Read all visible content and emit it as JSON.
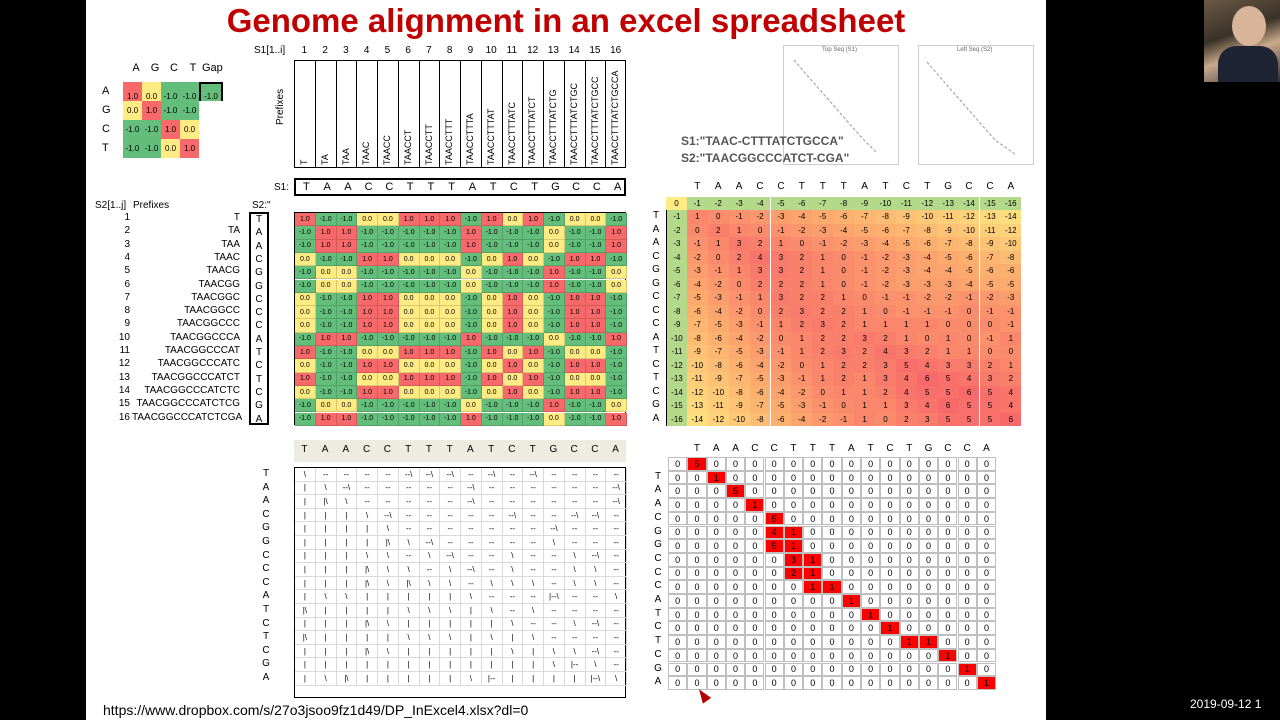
{
  "slide": {
    "title": "Genome alignment in an excel spreadsheet",
    "url": "https://www.dropbox.com/s/27o3jsoo9fz1d49/DP_InExcel4.xlsx?dl=0",
    "s1_label": "S1:\"TAAC-CTTTATCTGCCA\"",
    "s2_label": "S2:\"TAACGGCCCATCT-CGA\"",
    "s1_range_label": "S1[1..i]",
    "s2_range_label": "S2[1..j]",
    "prefixes_label": "Prefixes",
    "s1_row_label": "S1:",
    "s2_col_label": "S2:\"",
    "thumb1_label": "Top Seq (S1)",
    "thumb2_label": "Left Seq (S2)"
  },
  "timestamp": "2019-09-12 1",
  "colors": {
    "title": "#c00000",
    "red_cell": "#ff0000"
  },
  "score_matrix": {
    "headers": [
      "A",
      "G",
      "C",
      "T",
      "Gap"
    ],
    "rows": [
      {
        "label": "A",
        "values": [
          "1.0",
          "0.0",
          "-1.0",
          "-1.0",
          "-1.0"
        ]
      },
      {
        "label": "G",
        "values": [
          "0.0",
          "1.0",
          "-1.0",
          "-1.0",
          ""
        ]
      },
      {
        "label": "C",
        "values": [
          "-1.0",
          "-1.0",
          "1.0",
          "0.0",
          ""
        ]
      },
      {
        "label": "T",
        "values": [
          "-1.0",
          "-1.0",
          "0.0",
          "1.0",
          ""
        ]
      }
    ]
  },
  "s1_index": [
    "1",
    "2",
    "3",
    "4",
    "5",
    "6",
    "7",
    "8",
    "9",
    "10",
    "11",
    "12",
    "13",
    "14",
    "15",
    "16"
  ],
  "s1_prefixes": [
    "T",
    "TA",
    "TAA",
    "TAAC",
    "TAACC",
    "TAACCT",
    "TAACCTT",
    "TAACCTTT",
    "TAACCTTTA",
    "TAACCTTTAT",
    "TAACCTTTATC",
    "TAACCTTTATCT",
    "TAACCTTTATCTG",
    "TAACCTTTATCTGC",
    "TAACCTTTATCTGCC",
    "TAACCTTTATCTGCCA"
  ],
  "s1_seq": [
    "T",
    "A",
    "A",
    "C",
    "C",
    "T",
    "T",
    "T",
    "A",
    "T",
    "C",
    "T",
    "G",
    "C",
    "C",
    "A"
  ],
  "s2_index": [
    "1",
    "2",
    "3",
    "4",
    "5",
    "6",
    "7",
    "8",
    "9",
    "10",
    "11",
    "12",
    "13",
    "14",
    "15",
    "16"
  ],
  "s2_prefixes": [
    "T",
    "TA",
    "TAA",
    "TAAC",
    "TAACG",
    "TAACGG",
    "TAACGGC",
    "TAACGGCC",
    "TAACGGCCC",
    "TAACGGCCCA",
    "TAACGGCCCAT",
    "TAACGGCCCATC",
    "TAACGGCCCATCT",
    "TAACGGCCCATCTC",
    "TAACGGCCCATCTCG",
    "TAACGGCCCATCTCGA"
  ],
  "s2_seq": [
    "T",
    "A",
    "A",
    "C",
    "G",
    "G",
    "C",
    "C",
    "C",
    "A",
    "T",
    "C",
    "T",
    "C",
    "G",
    "A"
  ],
  "match_matrix": [
    [
      "1.0",
      "-1.0",
      "-1.0",
      "0.0",
      "0.0",
      "1.0",
      "1.0",
      "1.0",
      "-1.0",
      "1.0",
      "0.0",
      "1.0",
      "-1.0",
      "0.0",
      "0.0",
      "-1.0"
    ],
    [
      "-1.0",
      "1.0",
      "1.0",
      "-1.0",
      "-1.0",
      "-1.0",
      "-1.0",
      "-1.0",
      "1.0",
      "-1.0",
      "-1.0",
      "-1.0",
      "0.0",
      "-1.0",
      "-1.0",
      "1.0"
    ],
    [
      "-1.0",
      "1.0",
      "1.0",
      "-1.0",
      "-1.0",
      "-1.0",
      "-1.0",
      "-1.0",
      "1.0",
      "-1.0",
      "-1.0",
      "-1.0",
      "0.0",
      "-1.0",
      "-1.0",
      "1.0"
    ],
    [
      "0.0",
      "-1.0",
      "-1.0",
      "1.0",
      "1.0",
      "0.0",
      "0.0",
      "0.0",
      "-1.0",
      "0.0",
      "1.0",
      "0.0",
      "-1.0",
      "1.0",
      "1.0",
      "-1.0"
    ],
    [
      "-1.0",
      "0.0",
      "0.0",
      "-1.0",
      "-1.0",
      "-1.0",
      "-1.0",
      "-1.0",
      "0.0",
      "-1.0",
      "-1.0",
      "-1.0",
      "1.0",
      "-1.0",
      "-1.0",
      "0.0"
    ],
    [
      "-1.0",
      "0.0",
      "0.0",
      "-1.0",
      "-1.0",
      "-1.0",
      "-1.0",
      "-1.0",
      "0.0",
      "-1.0",
      "-1.0",
      "-1.0",
      "1.0",
      "-1.0",
      "-1.0",
      "0.0"
    ],
    [
      "0.0",
      "-1.0",
      "-1.0",
      "1.0",
      "1.0",
      "0.0",
      "0.0",
      "0.0",
      "-1.0",
      "0.0",
      "1.0",
      "0.0",
      "-1.0",
      "1.0",
      "1.0",
      "-1.0"
    ],
    [
      "0.0",
      "-1.0",
      "-1.0",
      "1.0",
      "1.0",
      "0.0",
      "0.0",
      "0.0",
      "-1.0",
      "0.0",
      "1.0",
      "0.0",
      "-1.0",
      "1.0",
      "1.0",
      "-1.0"
    ],
    [
      "0.0",
      "-1.0",
      "-1.0",
      "1.0",
      "1.0",
      "0.0",
      "0.0",
      "0.0",
      "-1.0",
      "0.0",
      "1.0",
      "0.0",
      "-1.0",
      "1.0",
      "1.0",
      "-1.0"
    ],
    [
      "-1.0",
      "1.0",
      "1.0",
      "-1.0",
      "-1.0",
      "-1.0",
      "-1.0",
      "-1.0",
      "1.0",
      "-1.0",
      "-1.0",
      "-1.0",
      "0.0",
      "-1.0",
      "-1.0",
      "1.0"
    ],
    [
      "1.0",
      "-1.0",
      "-1.0",
      "0.0",
      "0.0",
      "1.0",
      "1.0",
      "1.0",
      "-1.0",
      "1.0",
      "0.0",
      "1.0",
      "-1.0",
      "0.0",
      "0.0",
      "-1.0"
    ],
    [
      "0.0",
      "-1.0",
      "-1.0",
      "1.0",
      "1.0",
      "0.0",
      "0.0",
      "0.0",
      "-1.0",
      "0.0",
      "1.0",
      "0.0",
      "-1.0",
      "1.0",
      "1.0",
      "-1.0"
    ],
    [
      "1.0",
      "-1.0",
      "-1.0",
      "0.0",
      "0.0",
      "1.0",
      "1.0",
      "1.0",
      "-1.0",
      "1.0",
      "0.0",
      "1.0",
      "-1.0",
      "0.0",
      "0.0",
      "-1.0"
    ],
    [
      "0.0",
      "-1.0",
      "-1.0",
      "1.0",
      "1.0",
      "0.0",
      "0.0",
      "0.0",
      "-1.0",
      "0.0",
      "1.0",
      "0.0",
      "-1.0",
      "1.0",
      "1.0",
      "-1.0"
    ],
    [
      "-1.0",
      "0.0",
      "0.0",
      "-1.0",
      "-1.0",
      "-1.0",
      "-1.0",
      "-1.0",
      "0.0",
      "-1.0",
      "-1.0",
      "-1.0",
      "1.0",
      "-1.0",
      "-1.0",
      "0.0"
    ],
    [
      "-1.0",
      "1.0",
      "1.0",
      "-1.0",
      "-1.0",
      "-1.0",
      "-1.0",
      "-1.0",
      "1.0",
      "-1.0",
      "-1.0",
      "-1.0",
      "0.0",
      "-1.0",
      "-1.0",
      "1.0"
    ]
  ],
  "dp_matrix": {
    "header_row": [
      "0",
      "-1",
      "-2",
      "-3",
      "-4",
      "-5",
      "-6",
      "-7",
      "-8",
      "-9",
      "-10",
      "-11",
      "-12",
      "-13",
      "-14",
      "-15",
      "-16"
    ],
    "row_gap": [
      "-1",
      "-2",
      "-3",
      "-4",
      "-5",
      "-6",
      "-7",
      "-8",
      "-9",
      "-10",
      "-11",
      "-12",
      "-13",
      "-14",
      "-15",
      "-16"
    ],
    "rows": [
      [
        "1",
        "0",
        "-1",
        "-2",
        "-3",
        "-4",
        "-5",
        "-6",
        "-7",
        "-8",
        "-9",
        "-10",
        "-11",
        "-12",
        "-13",
        "-14"
      ],
      [
        "0",
        "2",
        "1",
        "0",
        "-1",
        "-2",
        "-3",
        "-4",
        "-5",
        "-6",
        "-7",
        "-8",
        "-9",
        "-10",
        "-11",
        "-12"
      ],
      [
        "-1",
        "1",
        "3",
        "2",
        "1",
        "0",
        "-1",
        "-2",
        "-3",
        "-4",
        "-5",
        "-6",
        "-7",
        "-8",
        "-9",
        "-10"
      ],
      [
        "-2",
        "0",
        "2",
        "4",
        "3",
        "2",
        "1",
        "0",
        "-1",
        "-2",
        "-3",
        "-4",
        "-5",
        "-6",
        "-7",
        "-8"
      ],
      [
        "-3",
        "-1",
        "1",
        "3",
        "3",
        "2",
        "1",
        "0",
        "-1",
        "-2",
        "-3",
        "-4",
        "-4",
        "-5",
        "-6",
        "-6"
      ],
      [
        "-4",
        "-2",
        "0",
        "2",
        "2",
        "2",
        "1",
        "0",
        "-1",
        "-2",
        "-3",
        "-3",
        "-3",
        "-4",
        "-5",
        "-5"
      ],
      [
        "-5",
        "-3",
        "-1",
        "1",
        "3",
        "2",
        "2",
        "1",
        "0",
        "-1",
        "-1",
        "-2",
        "-2",
        "-1",
        "-2",
        "-3"
      ],
      [
        "-6",
        "-4",
        "-2",
        "0",
        "2",
        "3",
        "2",
        "2",
        "1",
        "0",
        "-1",
        "-1",
        "-1",
        "0",
        "-1",
        "-1"
      ],
      [
        "-7",
        "-5",
        "-3",
        "-1",
        "1",
        "2",
        "3",
        "2",
        "1",
        "1",
        "1",
        "1",
        "0",
        "0",
        "0",
        "-1"
      ],
      [
        "-8",
        "-6",
        "-4",
        "-2",
        "0",
        "1",
        "2",
        "2",
        "3",
        "2",
        "1",
        "0",
        "1",
        "0",
        "-1",
        "1"
      ],
      [
        "-9",
        "-7",
        "-5",
        "-3",
        "-1",
        "1",
        "2",
        "3",
        "2",
        "4",
        "3",
        "2",
        "1",
        "1",
        "0",
        "0"
      ],
      [
        "-10",
        "-8",
        "-6",
        "-4",
        "-2",
        "0",
        "1",
        "2",
        "2",
        "3",
        "5",
        "4",
        "3",
        "3",
        "2",
        "1"
      ],
      [
        "-11",
        "-9",
        "-7",
        "-5",
        "-3",
        "-1",
        "1",
        "2",
        "1",
        "3",
        "4",
        "6",
        "5",
        "4",
        "3",
        "2"
      ],
      [
        "-12",
        "-10",
        "-8",
        "-6",
        "-4",
        "-2",
        "0",
        "1",
        "1",
        "2",
        "4",
        "5",
        "5",
        "6",
        "5",
        "4"
      ],
      [
        "-13",
        "-11",
        "-9",
        "-7",
        "-5",
        "-3",
        "-1",
        "0",
        "1",
        "1",
        "3",
        "4",
        "6",
        "5",
        "5",
        "4"
      ],
      [
        "-14",
        "-12",
        "-10",
        "-8",
        "-6",
        "-4",
        "-2",
        "-1",
        "1",
        "0",
        "2",
        "3",
        "5",
        "5",
        "5",
        "6"
      ]
    ]
  },
  "traceback": [
    [
      "\\",
      "--",
      "--",
      "--",
      "--",
      "--\\",
      "--\\",
      "--\\",
      "--",
      "--\\",
      "--",
      "--\\",
      "--",
      "--",
      "--",
      "--"
    ],
    [
      "|",
      "\\",
      "--\\",
      "--",
      "--",
      "--",
      "--",
      "--",
      "--\\",
      "--",
      "--",
      "--",
      "--",
      "--",
      "--",
      "--\\"
    ],
    [
      "|",
      "|\\",
      "\\",
      "--",
      "--",
      "--",
      "--",
      "--",
      "--\\",
      "--",
      "--",
      "--",
      "--",
      "--",
      "--",
      "--\\"
    ],
    [
      "|",
      "|",
      "|",
      "\\",
      "--\\",
      "--",
      "--",
      "--",
      "--",
      "--",
      "--\\",
      "--",
      "--",
      "--\\",
      "--\\",
      "--"
    ],
    [
      "|",
      "|",
      "|",
      "|",
      "\\",
      "--",
      "--",
      "--",
      "--",
      "--",
      "--",
      "--",
      "--\\",
      "--",
      "--",
      "--"
    ],
    [
      "|",
      "|",
      "|",
      "|",
      "|\\",
      "\\",
      "--\\",
      "--",
      "--",
      "--",
      "--",
      "--",
      "\\",
      "--",
      "--",
      "--"
    ],
    [
      "|",
      "|",
      "|",
      "\\",
      "\\",
      "--",
      "\\",
      "--\\",
      "--",
      "--",
      "\\",
      "--",
      "--",
      "\\",
      "--\\",
      "--"
    ],
    [
      "|",
      "|",
      "|",
      "|\\",
      "\\",
      "\\",
      "--",
      "\\",
      "--\\",
      "--",
      "\\",
      "--",
      "--",
      "\\",
      "\\",
      "--"
    ],
    [
      "|",
      "|",
      "|",
      "|\\",
      "\\",
      "|\\",
      "\\",
      "\\",
      "--",
      "\\",
      "\\",
      "\\",
      "--",
      "\\",
      "\\",
      "--"
    ],
    [
      "|",
      "\\",
      "\\",
      "|",
      "|",
      "|",
      "|",
      "|",
      "\\",
      "--",
      "--",
      "--",
      "|--\\",
      "--",
      "--",
      "\\"
    ],
    [
      "|\\",
      "|",
      "|",
      "|",
      "|",
      "\\",
      "\\",
      "\\",
      "|",
      "\\",
      "--",
      "\\",
      "--",
      "--",
      "--",
      "--"
    ],
    [
      "|",
      "|",
      "|",
      "|\\",
      "\\",
      "|",
      "|",
      "|",
      "|",
      "|",
      "\\",
      "--",
      "--",
      "\\",
      "--\\",
      "--"
    ],
    [
      "|\\",
      "|",
      "|",
      "|",
      "|",
      "\\",
      "\\",
      "\\",
      "|",
      "\\",
      "|",
      "\\",
      "--",
      "--",
      "--",
      "--"
    ],
    [
      "|",
      "|",
      "|",
      "|\\",
      "\\",
      "|",
      "|",
      "|",
      "|",
      "|",
      "\\",
      "|",
      "\\",
      "\\",
      "--\\",
      "--"
    ],
    [
      "|",
      "|",
      "|",
      "|",
      "|",
      "|",
      "|",
      "|",
      "|",
      "|",
      "|",
      "|",
      "\\",
      "|--",
      "\\",
      "--"
    ],
    [
      "|",
      "\\",
      "|\\",
      "|",
      "|",
      "|",
      "|",
      "|",
      "\\",
      "|--",
      "|",
      "|",
      "|",
      "|",
      "|--\\",
      "\\"
    ]
  ],
  "path_matrix": {
    "labels": [
      "T",
      "A",
      "A",
      "C",
      "G",
      "G",
      "C",
      "C",
      "C",
      "A",
      "T",
      "C",
      "T",
      "C",
      "G",
      "A"
    ],
    "cells": [
      [
        0,
        0,
        5,
        0,
        0,
        0,
        0,
        0,
        0,
        0,
        0,
        0,
        0,
        0,
        0,
        0,
        0,
        0
      ],
      [
        0,
        0,
        0,
        1,
        0,
        0,
        0,
        0,
        0,
        0,
        0,
        0,
        0,
        0,
        0,
        0,
        0,
        0
      ],
      [
        0,
        0,
        0,
        0,
        5,
        0,
        0,
        0,
        0,
        0,
        0,
        0,
        0,
        0,
        0,
        0,
        0,
        0
      ],
      [
        0,
        0,
        0,
        0,
        0,
        1,
        0,
        0,
        0,
        0,
        0,
        0,
        0,
        0,
        0,
        0,
        0,
        0
      ],
      [
        0,
        0,
        0,
        0,
        0,
        0,
        5,
        0,
        0,
        0,
        0,
        0,
        0,
        0,
        0,
        0,
        0,
        0
      ],
      [
        0,
        0,
        0,
        0,
        0,
        0,
        4,
        1,
        0,
        0,
        0,
        0,
        0,
        0,
        0,
        0,
        0,
        0
      ],
      [
        0,
        0,
        0,
        0,
        0,
        0,
        5,
        1,
        0,
        0,
        0,
        0,
        0,
        0,
        0,
        0,
        0,
        0
      ],
      [
        0,
        0,
        0,
        0,
        0,
        0,
        0,
        3,
        1,
        0,
        0,
        0,
        0,
        0,
        0,
        0,
        0,
        0
      ],
      [
        0,
        0,
        0,
        0,
        0,
        0,
        0,
        2,
        1,
        0,
        0,
        0,
        0,
        0,
        0,
        0,
        0,
        0
      ],
      [
        0,
        0,
        0,
        0,
        0,
        0,
        0,
        0,
        1,
        1,
        0,
        0,
        0,
        0,
        0,
        0,
        0,
        0
      ],
      [
        0,
        0,
        0,
        0,
        0,
        0,
        0,
        0,
        0,
        0,
        1,
        0,
        0,
        0,
        0,
        0,
        0,
        0
      ],
      [
        0,
        0,
        0,
        0,
        0,
        0,
        0,
        0,
        0,
        0,
        0,
        1,
        0,
        0,
        0,
        0,
        0,
        0
      ],
      [
        0,
        0,
        0,
        0,
        0,
        0,
        0,
        0,
        0,
        0,
        0,
        0,
        1,
        0,
        0,
        0,
        0,
        0
      ],
      [
        0,
        0,
        0,
        0,
        0,
        0,
        0,
        0,
        0,
        0,
        0,
        0,
        0,
        1,
        1,
        0,
        0,
        0
      ],
      [
        0,
        0,
        0,
        0,
        0,
        0,
        0,
        0,
        0,
        0,
        0,
        0,
        0,
        0,
        0,
        1,
        0,
        0
      ],
      [
        0,
        0,
        0,
        0,
        0,
        0,
        0,
        0,
        0,
        0,
        0,
        0,
        0,
        0,
        0,
        0,
        1,
        0
      ],
      [
        0,
        0,
        0,
        0,
        0,
        0,
        0,
        0,
        0,
        0,
        0,
        0,
        0,
        0,
        0,
        0,
        0,
        1
      ]
    ],
    "red_cells": [
      [
        0,
        2
      ],
      [
        1,
        3
      ],
      [
        2,
        4
      ],
      [
        3,
        5
      ],
      [
        4,
        6
      ],
      [
        5,
        6
      ],
      [
        5,
        7
      ],
      [
        6,
        6
      ],
      [
        6,
        7
      ],
      [
        7,
        7
      ],
      [
        7,
        8
      ],
      [
        8,
        7
      ],
      [
        8,
        8
      ],
      [
        9,
        8
      ],
      [
        9,
        9
      ],
      [
        10,
        10
      ],
      [
        11,
        11
      ],
      [
        12,
        12
      ],
      [
        13,
        13
      ],
      [
        13,
        14
      ],
      [
        14,
        15
      ],
      [
        15,
        16
      ],
      [
        16,
        17
      ]
    ]
  }
}
